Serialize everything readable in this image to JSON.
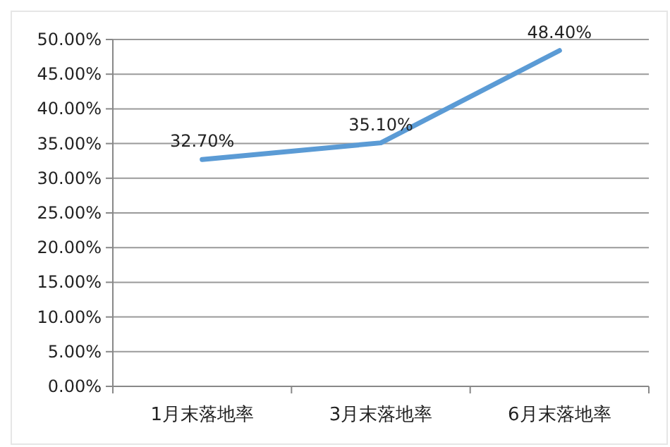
{
  "chart_data": {
    "type": "line",
    "categories": [
      "1月末落地率",
      "3月末落地率",
      "6月末落地率"
    ],
    "series": [
      {
        "color": "#5b9bd5",
        "values": [
          32.7,
          35.1,
          48.4
        ],
        "value_labels": [
          "32.70%",
          "35.10%",
          "48.40%"
        ]
      }
    ],
    "ylim": [
      0,
      50
    ],
    "yticks": [
      {
        "value": 0,
        "label": "0.00%"
      },
      {
        "value": 5,
        "label": "5.00%"
      },
      {
        "value": 10,
        "label": "10.00%"
      },
      {
        "value": 15,
        "label": "15.00%"
      },
      {
        "value": 20,
        "label": "20.00%"
      },
      {
        "value": 25,
        "label": "25.00%"
      },
      {
        "value": 30,
        "label": "30.00%"
      },
      {
        "value": 35,
        "label": "35.00%"
      },
      {
        "value": 40,
        "label": "40.00%"
      },
      {
        "value": 45,
        "label": "45.00%"
      },
      {
        "value": 50,
        "label": "50.00%"
      }
    ],
    "grid": "y",
    "marker": "none",
    "line_style": "solid"
  }
}
